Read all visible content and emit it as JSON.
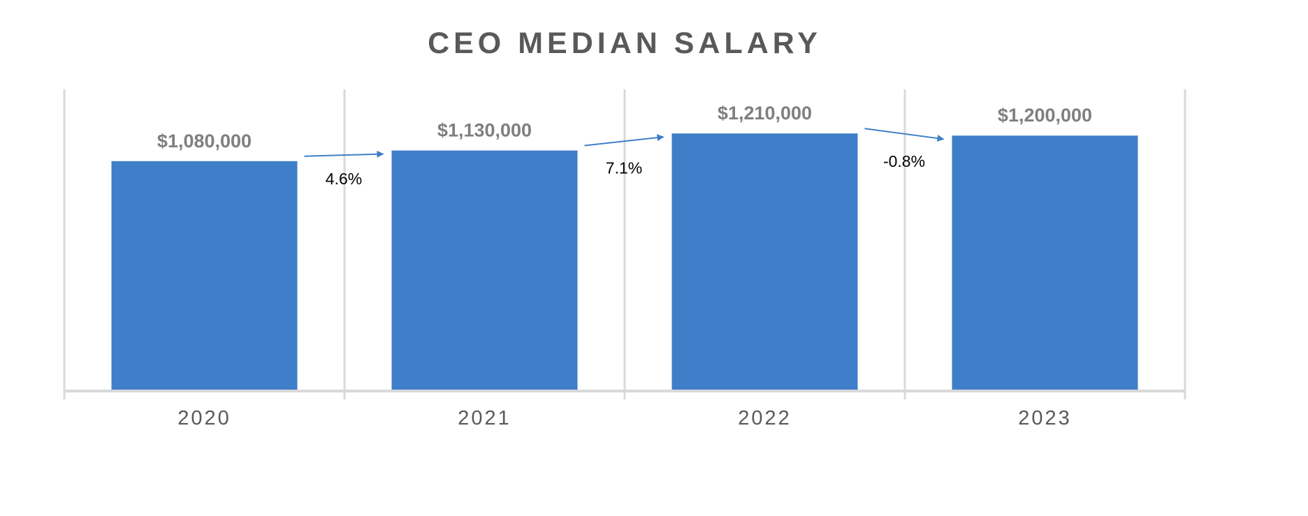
{
  "chart_data": {
    "type": "bar",
    "title": "CEO MEDIAN SALARY",
    "categories": [
      "2020",
      "2021",
      "2022",
      "2023"
    ],
    "values": [
      1080000,
      1130000,
      1210000,
      1200000
    ],
    "data_labels": [
      "$1,080,000",
      "$1,130,000",
      "$1,210,000",
      "$1,200,000"
    ],
    "annotations": [
      {
        "from": "2020",
        "to": "2021",
        "label": "4.6%"
      },
      {
        "from": "2021",
        "to": "2022",
        "label": "7.1%"
      },
      {
        "from": "2022",
        "to": "2023",
        "label": "-0.8%"
      }
    ],
    "xlabel": "",
    "ylabel": "",
    "ylim": [
      0,
      1240000
    ],
    "grid": "vertical category separators",
    "legend": "none",
    "colors": {
      "bar": "#3F7EC8",
      "arrow": "#3F7EC8",
      "axis": "#D9D9D9",
      "title": "#595959",
      "data_label": "#7F7F7F",
      "tick_label": "#595959"
    }
  }
}
